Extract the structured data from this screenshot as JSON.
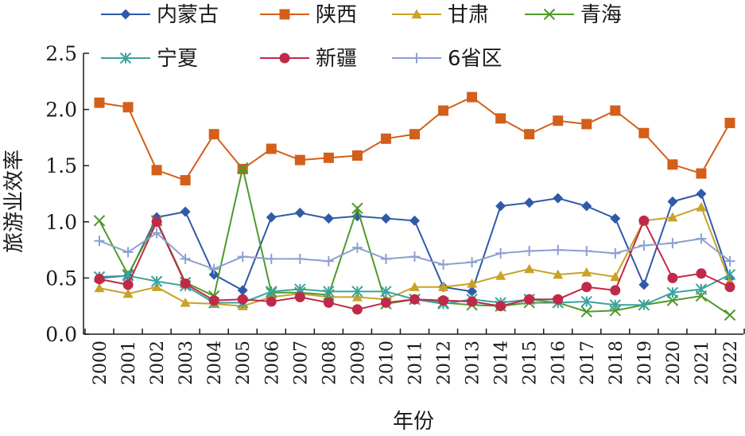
{
  "chart_data": {
    "type": "line",
    "title": "",
    "xlabel": "年份",
    "ylabel": "旅游业效率",
    "ylim": [
      0,
      2.5
    ],
    "yticks": [
      "0.0",
      "0.5",
      "1.0",
      "1.5",
      "2.0",
      "2.5"
    ],
    "grid": false,
    "legend_position": "top",
    "x": [
      "2000",
      "2001",
      "2002",
      "2003",
      "2004",
      "2005",
      "2006",
      "2007",
      "2008",
      "2009",
      "2010",
      "2011",
      "2012",
      "2013",
      "2014",
      "2015",
      "2016",
      "2017",
      "2018",
      "2019",
      "2020",
      "2021",
      "2022"
    ],
    "series": [
      {
        "name": "内蒙古",
        "color": "#2f5aa8",
        "marker": "diamond",
        "values": [
          0.5,
          0.52,
          1.04,
          1.09,
          0.53,
          0.39,
          1.04,
          1.08,
          1.03,
          1.05,
          1.03,
          1.01,
          0.42,
          0.38,
          1.14,
          1.17,
          1.21,
          1.14,
          1.03,
          0.44,
          1.18,
          1.25,
          0.5
        ]
      },
      {
        "name": "陕西",
        "color": "#d35f1a",
        "marker": "square",
        "values": [
          2.06,
          2.02,
          1.46,
          1.37,
          1.78,
          1.47,
          1.65,
          1.55,
          1.57,
          1.59,
          1.74,
          1.78,
          1.99,
          2.11,
          1.92,
          1.78,
          1.9,
          1.87,
          1.99,
          1.79,
          1.51,
          1.43,
          1.88
        ]
      },
      {
        "name": "甘肃",
        "color": "#c9a227",
        "marker": "triangle",
        "values": [
          0.41,
          0.36,
          0.42,
          0.28,
          0.27,
          0.25,
          0.33,
          0.36,
          0.33,
          0.33,
          0.31,
          0.42,
          0.42,
          0.45,
          0.52,
          0.58,
          0.53,
          0.55,
          0.51,
          1.01,
          1.04,
          1.13,
          0.47
        ]
      },
      {
        "name": "青海",
        "color": "#4e9a2a",
        "marker": "x",
        "values": [
          1.01,
          0.53,
          1.01,
          0.46,
          0.34,
          1.48,
          0.37,
          0.37,
          0.35,
          1.12,
          0.27,
          0.31,
          0.28,
          0.26,
          0.25,
          0.28,
          0.28,
          0.2,
          0.21,
          0.26,
          0.3,
          0.34,
          0.17
        ]
      },
      {
        "name": "宁夏",
        "color": "#3aa3a0",
        "marker": "asterisk",
        "values": [
          0.51,
          0.52,
          0.47,
          0.43,
          0.28,
          0.28,
          0.38,
          0.4,
          0.38,
          0.38,
          0.38,
          0.31,
          0.27,
          0.31,
          0.28,
          0.31,
          0.28,
          0.29,
          0.26,
          0.26,
          0.37,
          0.4,
          0.53
        ]
      },
      {
        "name": "新疆",
        "color": "#c0294a",
        "marker": "circle",
        "values": [
          0.49,
          0.44,
          1.0,
          0.45,
          0.3,
          0.31,
          0.29,
          0.33,
          0.28,
          0.22,
          0.28,
          0.31,
          0.3,
          0.29,
          0.25,
          0.31,
          0.31,
          0.42,
          0.39,
          1.01,
          0.5,
          0.54,
          0.42
        ]
      },
      {
        "name": "6省区",
        "color": "#8c9fd1",
        "marker": "plus",
        "values": [
          0.83,
          0.73,
          0.9,
          0.67,
          0.58,
          0.69,
          0.67,
          0.67,
          0.65,
          0.77,
          0.67,
          0.69,
          0.62,
          0.64,
          0.72,
          0.74,
          0.75,
          0.74,
          0.72,
          0.79,
          0.81,
          0.85,
          0.65
        ]
      }
    ]
  }
}
